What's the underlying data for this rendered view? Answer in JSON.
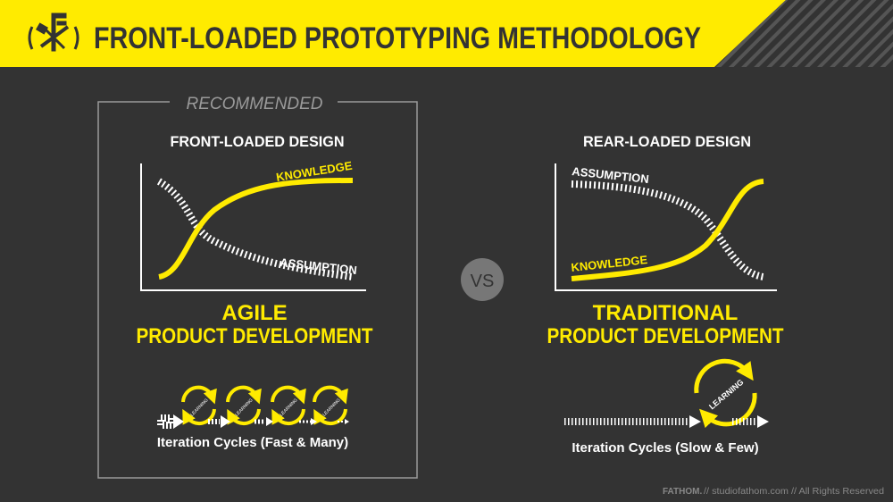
{
  "header": {
    "title": "FRONT-LOADED PROTOTYPING METHODOLOGY",
    "logo_icon": "caliper-hammer-laurel-icon"
  },
  "colors": {
    "accent": "#FFEB00",
    "background": "#333333",
    "text": "#FFFFFF",
    "muted": "#9A9A9A"
  },
  "left": {
    "badge": "RECOMMENDED",
    "chart_title": "FRONT-LOADED DESIGN",
    "knowledge_label": "KNOWLEDGE",
    "assumption_label": "ASSUMPTION",
    "title_line1": "AGILE",
    "title_line2": "PRODUCT DEVELOPMENT",
    "cycle_label": "LEARNING",
    "caption": "Iteration Cycles (Fast & Many)"
  },
  "vs": "VS",
  "right": {
    "chart_title": "REAR-LOADED DESIGN",
    "knowledge_label": "KNOWLEDGE",
    "assumption_label": "ASSUMPTION",
    "title_line1": "TRADITIONAL",
    "title_line2": "PRODUCT DEVELOPMENT",
    "cycle_label": "LEARNING",
    "caption": "Iteration Cycles (Slow & Few)"
  },
  "footer": {
    "brand": "FATHOM.",
    "text": "// studiofathom.com // All Rights Reserved"
  }
}
